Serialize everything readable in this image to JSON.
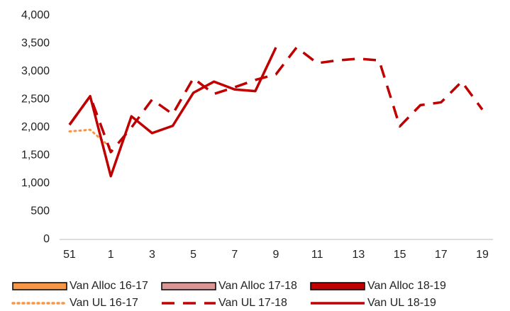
{
  "chart_data": {
    "type": "line",
    "categories": [
      "51",
      null,
      "1",
      null,
      "3",
      null,
      "5",
      null,
      "7",
      null,
      "9",
      null,
      "11",
      null,
      "13",
      null,
      "15",
      null,
      "17",
      null,
      "19"
    ],
    "ylim": [
      0,
      4000
    ],
    "yticks": [
      {
        "value": 0,
        "label": "0"
      },
      {
        "value": 500,
        "label": "500"
      },
      {
        "value": 1000,
        "label": "1,000"
      },
      {
        "value": 1500,
        "label": "1,500"
      },
      {
        "value": 2000,
        "label": "2,000"
      },
      {
        "value": 2500,
        "label": "2,500"
      },
      {
        "value": 3000,
        "label": "3,000"
      },
      {
        "value": 3500,
        "label": "3,500"
      },
      {
        "value": 4000,
        "label": "4,000"
      }
    ],
    "grid": false,
    "legend": "bottom",
    "series": [
      {
        "name": "Van Alloc 16-17",
        "color": "#f79646",
        "style": "bar",
        "values": [
          null,
          null,
          null,
          null,
          null,
          null,
          null,
          null,
          null,
          null,
          null,
          null,
          null,
          null,
          null,
          null,
          null,
          null,
          null,
          null,
          null
        ]
      },
      {
        "name": "Van Alloc 17-18",
        "color": "#d99694",
        "style": "bar",
        "values": [
          null,
          null,
          null,
          null,
          null,
          null,
          null,
          null,
          null,
          null,
          null,
          null,
          null,
          null,
          null,
          null,
          null,
          null,
          null,
          null,
          null
        ]
      },
      {
        "name": "Van Alloc 18-19",
        "color": "#c00000",
        "style": "bar",
        "values": [
          null,
          null,
          null,
          null,
          null,
          null,
          null,
          null,
          null,
          null,
          null,
          null,
          null,
          null,
          null,
          null,
          null,
          null,
          null,
          null,
          null
        ]
      },
      {
        "name": "Van UL 16-17",
        "color": "#f79646",
        "style": "dotted",
        "values": [
          1930,
          1960,
          1640,
          null,
          null,
          null,
          null,
          null,
          null,
          null,
          null,
          null,
          null,
          null,
          null,
          null,
          null,
          null,
          null,
          null,
          null
        ]
      },
      {
        "name": "Van UL 17-18",
        "color": "#c00000",
        "style": "dashed",
        "values": [
          2050,
          2560,
          1560,
          2000,
          2500,
          2240,
          2880,
          2600,
          2720,
          2850,
          2950,
          3430,
          3150,
          3200,
          3230,
          3200,
          2020,
          2400,
          2450,
          2820,
          2320
        ]
      },
      {
        "name": "Van UL 18-19",
        "color": "#c00000",
        "style": "solid",
        "values": [
          2050,
          2560,
          1130,
          2200,
          1900,
          2030,
          2620,
          2820,
          2680,
          2650,
          3430,
          null,
          null,
          null,
          null,
          null,
          null,
          null,
          null,
          null,
          null
        ]
      }
    ]
  }
}
